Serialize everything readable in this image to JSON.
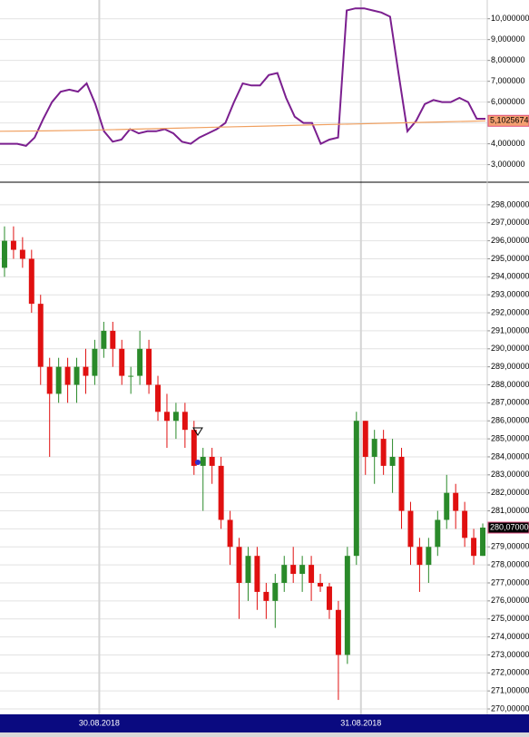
{
  "chart_data": [
    {
      "type": "line",
      "series": [
        {
          "color": "#7b1f8f",
          "values": [
            4.0,
            4.0,
            4.0,
            3.9,
            4.3,
            5.2,
            6.0,
            6.5,
            6.6,
            6.5,
            6.9,
            5.9,
            4.6,
            4.1,
            4.2,
            4.7,
            4.5,
            4.6,
            4.6,
            4.7,
            4.5,
            4.1,
            4.0,
            4.3,
            4.5,
            4.7,
            5.0,
            6.0,
            6.9,
            6.8,
            6.8,
            7.3,
            7.4,
            6.2,
            5.3,
            5.0,
            5.0,
            4.0,
            4.2,
            4.3,
            10.4,
            10.5,
            10.5,
            10.4,
            10.3,
            10.1,
            7.3,
            4.6,
            5.1,
            5.9,
            6.1,
            6.0,
            6.0,
            6.2,
            6.0,
            5.2,
            5.2
          ]
        },
        {
          "color": "#f0a060",
          "values": [
            4.6,
            4.62,
            4.65,
            4.7,
            4.75,
            4.8,
            4.85,
            4.9,
            4.95,
            5.0,
            5.05,
            5.1
          ]
        }
      ],
      "ylim": [
        2.2,
        10.9
      ],
      "yticks": [
        {
          "value": 3,
          "label": "3,000000"
        },
        {
          "value": 4,
          "label": "4,000000"
        },
        {
          "value": 5,
          "label": "5,000000"
        },
        {
          "value": 6,
          "label": "6,000000"
        },
        {
          "value": 7,
          "label": "7,000000"
        },
        {
          "value": 8,
          "label": "8,000000"
        },
        {
          "value": 9,
          "label": "9,000000"
        },
        {
          "value": 10,
          "label": "10,000000"
        }
      ],
      "current_value": 5.1025674,
      "current_value_label": "5,1025674",
      "grid": true
    },
    {
      "type": "candlestick",
      "up_color": "#2a8a2a",
      "down_color": "#e01010",
      "open": [
        294.5,
        296,
        295.5,
        295,
        292.5,
        289,
        287.5,
        289,
        288,
        289,
        288.5,
        290,
        291,
        290,
        288.5,
        288.5,
        290,
        288,
        286.5,
        286,
        286.5,
        285.5,
        283.5,
        284,
        283.5,
        280.5,
        279,
        277,
        278.5,
        276.5,
        276,
        277,
        278,
        277.5,
        278,
        277,
        276.8,
        275.5,
        273,
        278.5,
        286,
        284,
        285,
        283.5,
        284,
        281,
        279,
        278,
        279,
        280.5,
        282,
        281,
        279.5,
        278.5
      ],
      "high": [
        296.8,
        296.8,
        296.2,
        295.5,
        293,
        289.5,
        289.5,
        289.5,
        289.5,
        290,
        290.5,
        291.5,
        291.5,
        290.5,
        289,
        291,
        290.5,
        288.5,
        287.5,
        287,
        287,
        286,
        284.5,
        284.5,
        284,
        281,
        279.5,
        279,
        279,
        277,
        277.5,
        278.5,
        279,
        278.5,
        278.5,
        277.5,
        277,
        276,
        279,
        286.5,
        286,
        285.5,
        285.5,
        285,
        284.5,
        281.5,
        279.5,
        279.5,
        281,
        283,
        282.5,
        281.5,
        280,
        280.3
      ],
      "low": [
        294,
        295,
        294.5,
        292,
        288,
        284,
        287,
        287,
        287,
        287.5,
        288,
        289.5,
        289,
        288,
        287.5,
        288,
        287.5,
        286,
        284.5,
        285,
        284.5,
        283,
        281,
        282.5,
        280,
        278,
        275,
        276,
        275.5,
        275,
        274.5,
        276.5,
        277,
        276.5,
        276,
        276.5,
        275,
        270.5,
        272.5,
        278,
        283,
        282.5,
        283,
        282,
        280,
        278,
        276.5,
        277,
        278.5,
        280,
        280,
        279,
        278,
        278.5
      ],
      "close": [
        296,
        295.5,
        295,
        292.5,
        289,
        287.5,
        289,
        288,
        289,
        288.5,
        290,
        291,
        290,
        288.5,
        288.5,
        290,
        288,
        286.5,
        286,
        286.5,
        285.5,
        283.5,
        284,
        283.5,
        280.5,
        279,
        277,
        278.5,
        276.5,
        276,
        277,
        278,
        277.5,
        278,
        277,
        276.8,
        275.5,
        273,
        278.5,
        286,
        284,
        285,
        283.5,
        284,
        281,
        279,
        278,
        279,
        280.5,
        282,
        281,
        279.5,
        278.5,
        280.07
      ],
      "ylim": [
        269.8,
        298.8
      ],
      "yticks": [
        {
          "value": 270,
          "label": "270,000000"
        },
        {
          "value": 271,
          "label": "271,000000"
        },
        {
          "value": 272,
          "label": "272,000000"
        },
        {
          "value": 273,
          "label": "273,000000"
        },
        {
          "value": 274,
          "label": "274,000000"
        },
        {
          "value": 275,
          "label": "275,000000"
        },
        {
          "value": 276,
          "label": "276,000000"
        },
        {
          "value": 277,
          "label": "277,000000"
        },
        {
          "value": 278,
          "label": "278,000000"
        },
        {
          "value": 279,
          "label": "279,000000"
        },
        {
          "value": 280,
          "label": "280,000000"
        },
        {
          "value": 281,
          "label": "281,000000"
        },
        {
          "value": 282,
          "label": "282,000000"
        },
        {
          "value": 283,
          "label": "283,000000"
        },
        {
          "value": 284,
          "label": "284,000000"
        },
        {
          "value": 285,
          "label": "285,000000"
        },
        {
          "value": 286,
          "label": "286,000000"
        },
        {
          "value": 287,
          "label": "287,000000"
        },
        {
          "value": 288,
          "label": "288,000000"
        },
        {
          "value": 289,
          "label": "289,000000"
        },
        {
          "value": 290,
          "label": "290,000000"
        },
        {
          "value": 291,
          "label": "291,000000"
        },
        {
          "value": 292,
          "label": "292,000000"
        },
        {
          "value": 293,
          "label": "293,000000"
        },
        {
          "value": 294,
          "label": "294,000000"
        },
        {
          "value": 295,
          "label": "295,000000"
        },
        {
          "value": 296,
          "label": "296,000000"
        },
        {
          "value": 297,
          "label": "297,000000"
        },
        {
          "value": 298,
          "label": "298,000000"
        }
      ],
      "xticks": [
        {
          "value": 11,
          "label": "30.08.2018"
        },
        {
          "value": 40,
          "label": "31.08.2018"
        }
      ],
      "current_value": 280.07,
      "current_value_label": "280,070000",
      "grid": true
    }
  ]
}
